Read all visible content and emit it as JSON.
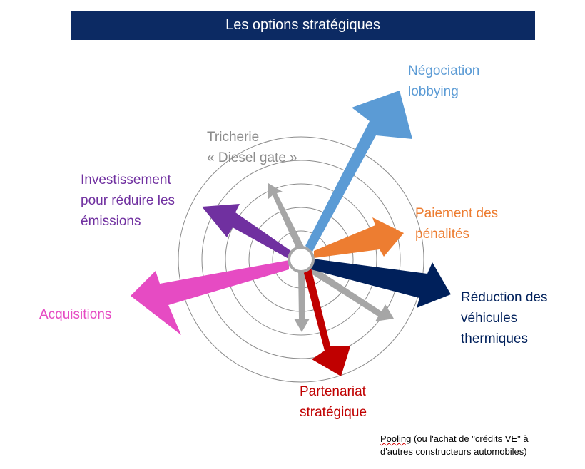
{
  "title": "Les options stratégiques",
  "labels": {
    "negociation": [
      "Négociation",
      "lobbying"
    ],
    "tricherie": [
      "Tricherie",
      "« Diesel gate »"
    ],
    "investissement": [
      "Investissement",
      "pour réduire les",
      "émissions"
    ],
    "paiement": [
      "Paiement des",
      "pénalités"
    ],
    "reduction": [
      "Réduction des",
      "véhicules",
      "thermiques"
    ],
    "acquisitions": [
      "Acquisitions"
    ],
    "partenariat": [
      "Partenariat",
      "stratégique"
    ]
  },
  "note": {
    "line1_word": "Pooling",
    "line1_rest": " (ou l'achat de \"crédits VE\" à",
    "line2": "d'autres constructeurs automobiles)"
  },
  "colors": {
    "negociation": "#5b9bd5",
    "tricherie": "#a6a6a6",
    "investissement": "#7030a0",
    "paiement": "#ed7d31",
    "reduction": "#00205b",
    "acquisitions": "#e64bc3",
    "partenariat": "#c00000",
    "pooling": "#a6a6a6",
    "title_bar": "#0c2a63"
  }
}
